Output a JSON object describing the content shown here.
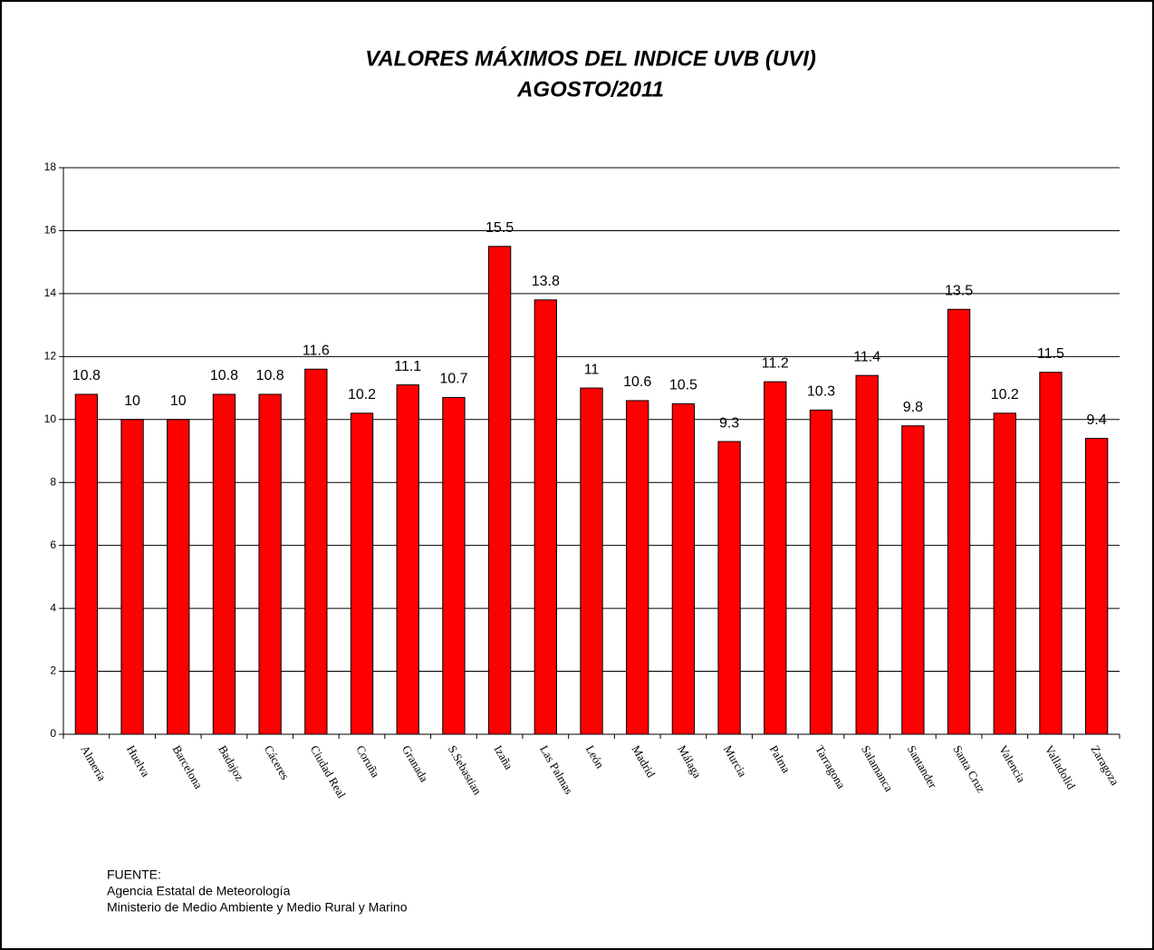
{
  "chart_data": {
    "type": "bar",
    "title": "VALORES MÁXIMOS DEL INDICE UVB (UVI)",
    "subtitle": "AGOSTO/2011",
    "categories": [
      "Almería",
      "Huelva",
      "Barcelona",
      "Badajoz",
      "Cáceres",
      "Ciudad Real",
      "Coruña",
      "Granada",
      "S.Sebastian",
      "Izaña",
      "Las Palmas",
      "León",
      "Madrid",
      "Málaga",
      "Murcia",
      "Palma",
      "Tarragona",
      "Salamanca",
      "Santander",
      "Santa Cruz",
      "Valencia",
      "Valladolid",
      "Zaragoza"
    ],
    "values": [
      10.8,
      10,
      10,
      10.8,
      10.8,
      11.6,
      10.2,
      11.1,
      10.7,
      15.5,
      13.8,
      11,
      10.6,
      10.5,
      9.3,
      11.2,
      10.3,
      11.4,
      9.8,
      13.5,
      10.2,
      11.5,
      9.4
    ],
    "color": "#ff0000",
    "ylim": [
      0,
      18
    ],
    "yticks": [
      0,
      2,
      4,
      6,
      8,
      10,
      12,
      14,
      16,
      18
    ],
    "grid": true,
    "source": [
      "FUENTE:",
      "Agencia Estatal de Meteorología",
      "Ministerio de Medio Ambiente y Medio Rural y Marino"
    ]
  }
}
